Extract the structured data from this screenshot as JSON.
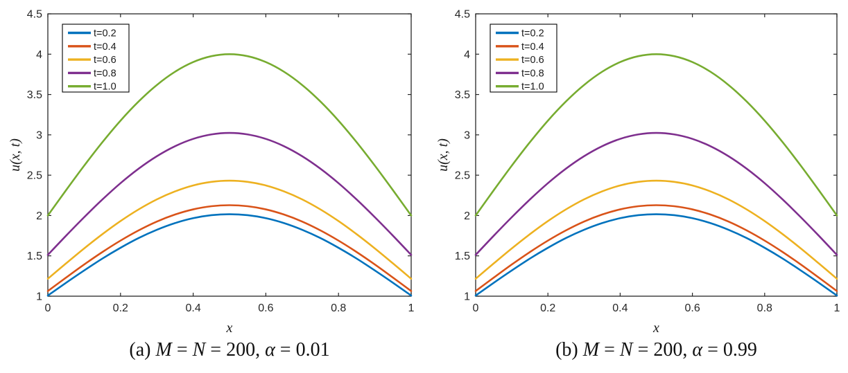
{
  "figure": {
    "background": "#ffffff",
    "axis_color": "#262626",
    "tick_label_color": "#262626"
  },
  "chart_data": [
    {
      "id": "a",
      "type": "line",
      "title": "",
      "caption": "(a) M = N = 200, α = 0.01",
      "caption_parts": [
        {
          "text": "(a) ",
          "italic": false
        },
        {
          "text": "M",
          "italic": true
        },
        {
          "text": " = ",
          "italic": false
        },
        {
          "text": "N",
          "italic": true
        },
        {
          "text": " = 200, ",
          "italic": false
        },
        {
          "text": "α",
          "italic": true
        },
        {
          "text": " = 0.01",
          "italic": false
        }
      ],
      "xlabel": "x",
      "ylabel": "u(x, t)",
      "xlim": [
        0,
        1
      ],
      "ylim": [
        1,
        4.5
      ],
      "x_ticks": [
        0,
        0.2,
        0.4,
        0.6,
        0.8,
        1
      ],
      "x_tick_labels": [
        "0",
        "0.2",
        "0.4",
        "0.6",
        "0.8",
        "1"
      ],
      "y_ticks": [
        1,
        1.5,
        2,
        2.5,
        3,
        3.5,
        4,
        4.5
      ],
      "y_tick_labels": [
        "1",
        "1.5",
        "2",
        "2.5",
        "3",
        "3.5",
        "4",
        "4.5"
      ],
      "grid": false,
      "legend": {
        "position": "top-left",
        "entries": [
          "t=0.2",
          "t=0.4",
          "t=0.6",
          "t=0.8",
          "t=1.0"
        ]
      },
      "x": [
        0,
        0.05,
        0.1,
        0.15,
        0.2,
        0.25,
        0.3,
        0.35,
        0.4,
        0.45,
        0.5,
        0.55,
        0.6,
        0.65,
        0.7,
        0.75,
        0.8,
        0.85,
        0.9,
        0.95,
        1
      ],
      "series": [
        {
          "name": "t=0.2",
          "color": "#0072BD",
          "values": [
            1.008,
            1.166,
            1.319,
            1.466,
            1.6,
            1.721,
            1.823,
            1.906,
            1.967,
            2.004,
            2.016,
            2.004,
            1.967,
            1.906,
            1.823,
            1.721,
            1.6,
            1.466,
            1.319,
            1.166,
            1.008
          ]
        },
        {
          "name": "t=0.4",
          "color": "#D95319",
          "values": [
            1.064,
            1.23,
            1.393,
            1.547,
            1.689,
            1.816,
            1.925,
            2.012,
            2.076,
            2.115,
            2.128,
            2.115,
            2.076,
            2.012,
            1.925,
            1.816,
            1.689,
            1.547,
            1.393,
            1.23,
            1.064
          ]
        },
        {
          "name": "t=0.6",
          "color": "#EDB120",
          "values": [
            1.216,
            1.406,
            1.592,
            1.768,
            1.931,
            2.076,
            2.2,
            2.299,
            2.373,
            2.417,
            2.432,
            2.417,
            2.373,
            2.299,
            2.2,
            2.076,
            1.931,
            1.768,
            1.592,
            1.406,
            1.216
          ]
        },
        {
          "name": "t=0.8",
          "color": "#7E2F8E",
          "values": [
            1.512,
            1.749,
            1.979,
            2.198,
            2.401,
            2.581,
            2.735,
            2.859,
            2.95,
            3.005,
            3.024,
            3.005,
            2.95,
            2.859,
            2.735,
            2.581,
            2.401,
            2.198,
            1.979,
            1.749,
            1.512
          ]
        },
        {
          "name": "t=1.0",
          "color": "#77AC30",
          "values": [
            2.0,
            2.313,
            2.618,
            2.908,
            3.176,
            3.414,
            3.618,
            3.782,
            3.902,
            3.975,
            4.0,
            3.975,
            3.902,
            3.782,
            3.618,
            3.414,
            3.176,
            2.908,
            2.618,
            2.313,
            2.0
          ]
        }
      ]
    },
    {
      "id": "b",
      "type": "line",
      "title": "",
      "caption": "(b) M = N = 200, α = 0.99",
      "caption_parts": [
        {
          "text": "(b) ",
          "italic": false
        },
        {
          "text": "M",
          "italic": true
        },
        {
          "text": " = ",
          "italic": false
        },
        {
          "text": "N",
          "italic": true
        },
        {
          "text": " = 200, ",
          "italic": false
        },
        {
          "text": "α",
          "italic": true
        },
        {
          "text": " = 0.99",
          "italic": false
        }
      ],
      "xlabel": "x",
      "ylabel": "u(x, t)",
      "xlim": [
        0,
        1
      ],
      "ylim": [
        1,
        4.5
      ],
      "x_ticks": [
        0,
        0.2,
        0.4,
        0.6,
        0.8,
        1
      ],
      "x_tick_labels": [
        "0",
        "0.2",
        "0.4",
        "0.6",
        "0.8",
        "1"
      ],
      "y_ticks": [
        1,
        1.5,
        2,
        2.5,
        3,
        3.5,
        4,
        4.5
      ],
      "y_tick_labels": [
        "1",
        "1.5",
        "2",
        "2.5",
        "3",
        "3.5",
        "4",
        "4.5"
      ],
      "grid": false,
      "legend": {
        "position": "top-left",
        "entries": [
          "t=0.2",
          "t=0.4",
          "t=0.6",
          "t=0.8",
          "t=1.0"
        ]
      },
      "x": [
        0,
        0.05,
        0.1,
        0.15,
        0.2,
        0.25,
        0.3,
        0.35,
        0.4,
        0.45,
        0.5,
        0.55,
        0.6,
        0.65,
        0.7,
        0.75,
        0.8,
        0.85,
        0.9,
        0.95,
        1
      ],
      "series": [
        {
          "name": "t=0.2",
          "color": "#0072BD",
          "values": [
            1.008,
            1.166,
            1.319,
            1.466,
            1.6,
            1.721,
            1.823,
            1.906,
            1.967,
            2.004,
            2.016,
            2.004,
            1.967,
            1.906,
            1.823,
            1.721,
            1.6,
            1.466,
            1.319,
            1.166,
            1.008
          ]
        },
        {
          "name": "t=0.4",
          "color": "#D95319",
          "values": [
            1.064,
            1.23,
            1.393,
            1.547,
            1.689,
            1.816,
            1.925,
            2.012,
            2.076,
            2.115,
            2.128,
            2.115,
            2.076,
            2.012,
            1.925,
            1.816,
            1.689,
            1.547,
            1.393,
            1.23,
            1.064
          ]
        },
        {
          "name": "t=0.6",
          "color": "#EDB120",
          "values": [
            1.216,
            1.406,
            1.592,
            1.768,
            1.931,
            2.076,
            2.2,
            2.299,
            2.373,
            2.417,
            2.432,
            2.417,
            2.373,
            2.299,
            2.2,
            2.076,
            1.931,
            1.768,
            1.592,
            1.406,
            1.216
          ]
        },
        {
          "name": "t=0.8",
          "color": "#7E2F8E",
          "values": [
            1.512,
            1.749,
            1.979,
            2.198,
            2.401,
            2.581,
            2.735,
            2.859,
            2.95,
            3.005,
            3.024,
            3.005,
            2.95,
            2.859,
            2.735,
            2.581,
            2.401,
            2.198,
            1.979,
            1.749,
            1.512
          ]
        },
        {
          "name": "t=1.0",
          "color": "#77AC30",
          "values": [
            2.0,
            2.313,
            2.618,
            2.908,
            3.176,
            3.414,
            3.618,
            3.782,
            3.902,
            3.975,
            4.0,
            3.975,
            3.902,
            3.782,
            3.618,
            3.414,
            3.176,
            2.908,
            2.618,
            2.313,
            2.0
          ]
        }
      ]
    }
  ]
}
